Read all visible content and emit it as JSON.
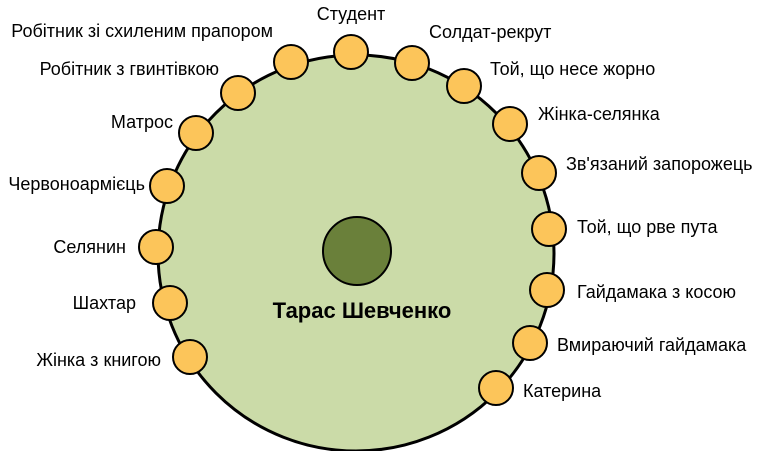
{
  "diagram": {
    "center_label": "Тарас Шевченко",
    "colors": {
      "big_circle_fill": "#cbdba8",
      "center_circle_fill": "#6a803a",
      "figure_fill": "#fcc55a",
      "stroke": "#000000"
    },
    "figures": [
      {
        "label": "Студент"
      },
      {
        "label": "Солдат-рекрут"
      },
      {
        "label": "Той, що несе жорно"
      },
      {
        "label": "Жінка-селянка"
      },
      {
        "label": "Зв'язаний запорожець"
      },
      {
        "label": "Той, що рве пута"
      },
      {
        "label": "Гайдамака з косою"
      },
      {
        "label": "Вмираючий гайдамака"
      },
      {
        "label": "Катерина"
      },
      {
        "label": "Робітник зі схиленим прапором"
      },
      {
        "label": "Робітник з гвинтівкою"
      },
      {
        "label": "Матрос"
      },
      {
        "label": "Червоноармієць"
      },
      {
        "label": "Селянин"
      },
      {
        "label": "Шахтар"
      },
      {
        "label": "Жінка з книгою"
      }
    ]
  }
}
